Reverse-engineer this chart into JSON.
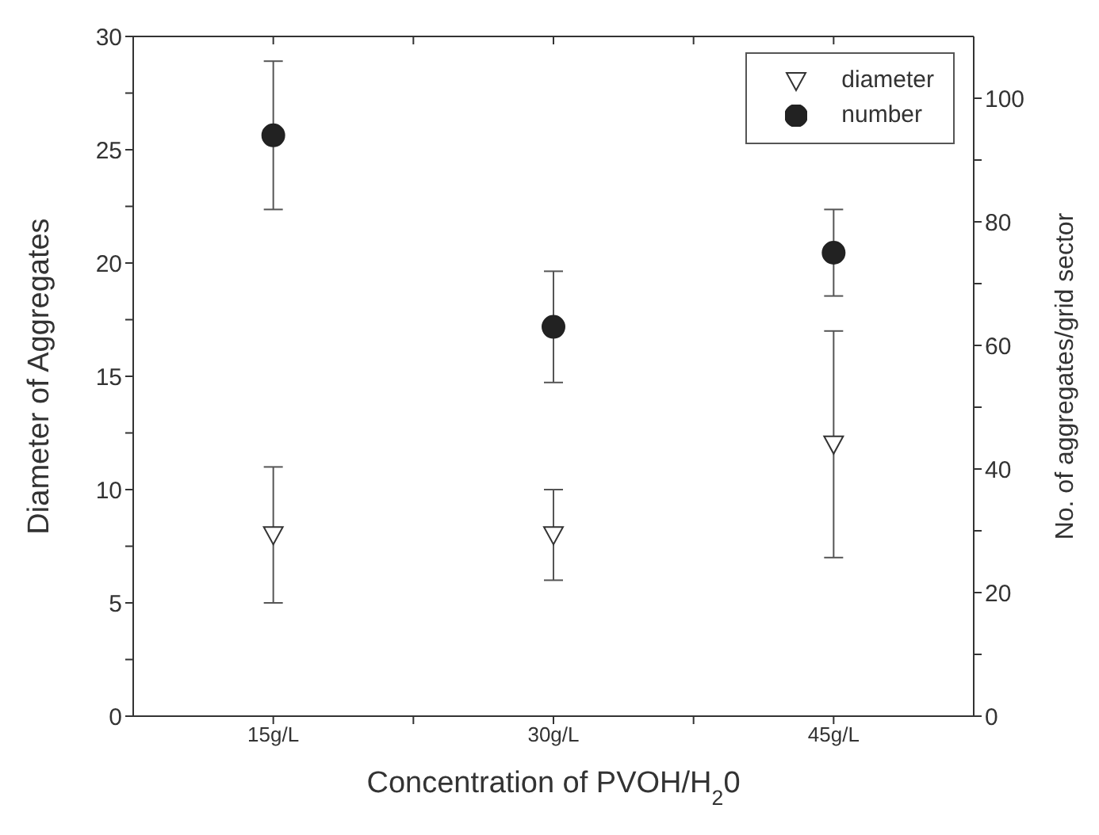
{
  "chart_data": {
    "type": "scatter",
    "xlabel": "Concentration of PVOH/H$_{2}$0",
    "ylabel": "Diameter of Aggregates",
    "y2label": "No. of aggregates/grid sector",
    "x": [
      15,
      30,
      45
    ],
    "series": [
      {
        "name": "diameter",
        "color": "#333333",
        "marker": "triangle",
        "values": [
          8,
          8,
          12
        ],
        "errors": [
          3,
          2,
          5
        ]
      },
      {
        "name": "number",
        "color": "#222222",
        "marker": "circle",
        "axis": "y2",
        "values": [
          94,
          63,
          75
        ],
        "errors": [
          12,
          9,
          7
        ]
      }
    ],
    "xlim": [
      7.5,
      52.5
    ],
    "xticks": [
      {
        "value": 15,
        "label": "15g/L"
      },
      {
        "value": 22.5,
        "label": null
      },
      {
        "value": 30,
        "label": "30g/L"
      },
      {
        "value": 37.5,
        "label": null
      },
      {
        "value": 45,
        "label": "45g/L"
      }
    ],
    "ylim": [
      0,
      30
    ],
    "yticks": [
      0,
      {
        "value": 2.5,
        "label": null
      },
      5,
      {
        "value": 7.5,
        "label": null
      },
      10,
      {
        "value": 12.5,
        "label": null
      },
      15,
      {
        "value": 17.5,
        "label": null
      },
      20,
      {
        "value": 22.5,
        "label": null
      },
      25,
      {
        "value": 27.5,
        "label": null
      },
      30
    ],
    "y2lim": [
      0,
      110
    ],
    "y2ticks": [
      0,
      {
        "value": 10,
        "label": null
      },
      20,
      {
        "value": 30,
        "label": null
      },
      40,
      {
        "value": 50,
        "label": null
      },
      60,
      {
        "value": 70,
        "label": null
      },
      80,
      {
        "value": 90,
        "label": null
      },
      100
    ],
    "legend": "top right",
    "grid": false
  }
}
